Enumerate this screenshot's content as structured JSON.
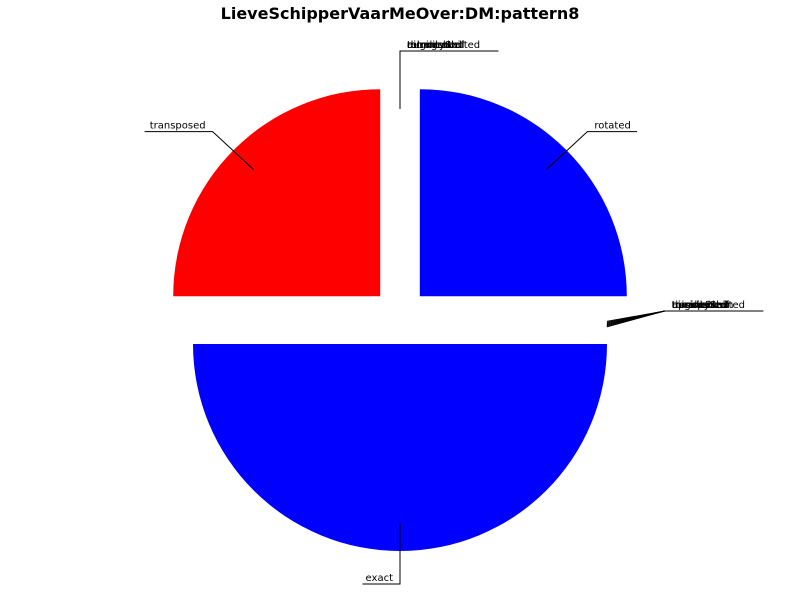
{
  "chart_data": {
    "type": "pie",
    "title": "LieveSchipperVaarMeOver:DM:pattern8",
    "start_angle_deg": 90,
    "direction": "counterclockwise",
    "slices": [
      {
        "label": "transposed",
        "value": 1,
        "color": "#ff0000",
        "exploded": true
      },
      {
        "label": "exact",
        "value": 2,
        "color": "#0000ff",
        "exploded": true
      },
      {
        "label": "rotated",
        "value": 1,
        "color": "#0000ff",
        "exploded": true
      }
    ],
    "zero_slices_at_bottom_right": [
      "upsideDown",
      "tonalityShifted",
      "mirrored",
      "augmented",
      "diminished",
      "transposed"
    ],
    "zero_slices_at_top": [
      "tonalityShifted",
      "retrograde",
      "augmented",
      "diminished",
      "mirrored"
    ],
    "legend": false,
    "grid": false
  }
}
